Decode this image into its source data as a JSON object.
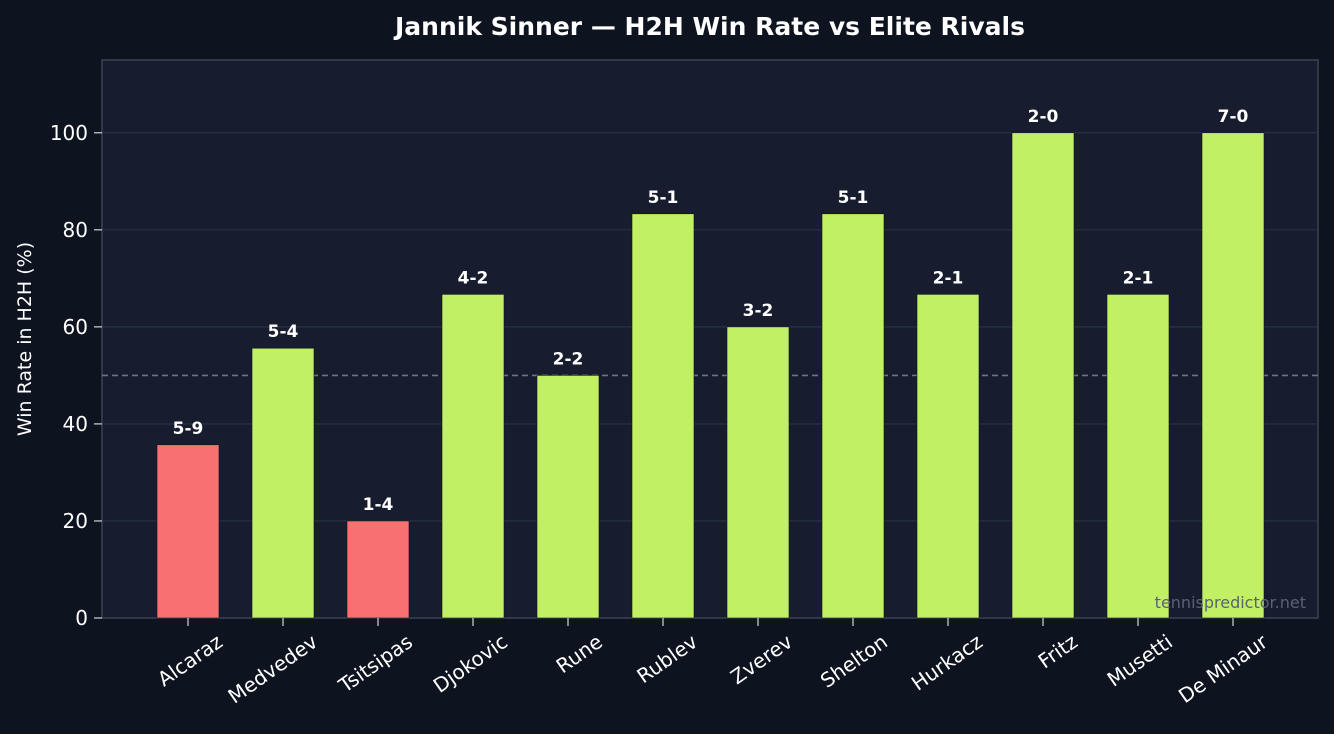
{
  "chart_data": {
    "type": "bar",
    "title": "Jannik Sinner — H2H Win Rate vs Elite Rivals",
    "xlabel": "",
    "ylabel": "Win Rate in H2H (%)",
    "ylim": [
      0,
      115
    ],
    "yticks": [
      0,
      20,
      40,
      60,
      80,
      100
    ],
    "reference_line": 50,
    "grid": true,
    "categories": [
      "Alcaraz",
      "Medvedev",
      "Tsitsipas",
      "Djokovic",
      "Rune",
      "Rublev",
      "Zverev",
      "Shelton",
      "Hurkacz",
      "Fritz",
      "Musetti",
      "De Minaur"
    ],
    "values": [
      35.7,
      55.6,
      20.0,
      66.7,
      50.0,
      83.3,
      60.0,
      83.3,
      66.7,
      100.0,
      66.7,
      100.0
    ],
    "bar_labels": [
      "5-9",
      "5-4",
      "1-4",
      "4-2",
      "2-2",
      "5-1",
      "3-2",
      "5-1",
      "2-1",
      "2-0",
      "2-1",
      "7-0"
    ],
    "colors": {
      "winning": "#c2f065",
      "losing": "#f87171",
      "background": "#0e1320",
      "plot_background": "#171d2e",
      "reference": "#6b7785"
    }
  },
  "watermark": "tennispredictor.net"
}
